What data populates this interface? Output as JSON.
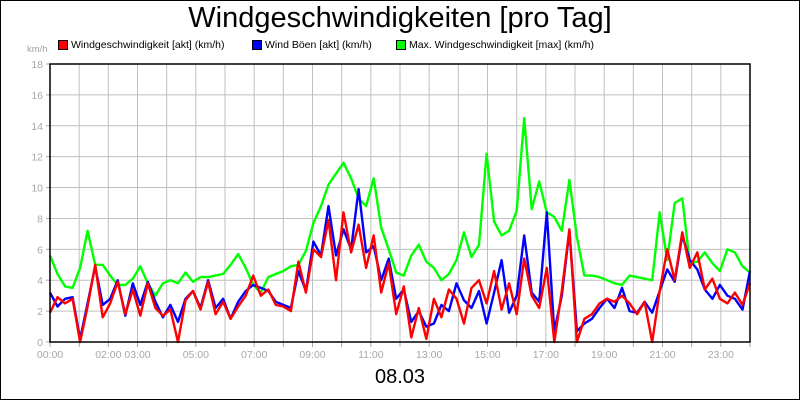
{
  "title": "Windgeschwindigkeiten [pro Tag]",
  "unit_label": "km/h",
  "date_label": "08.03",
  "legend": [
    {
      "label": "Windgeschwindigkeit [akt] (km/h)",
      "color": "#ff0000"
    },
    {
      "label": "Wind Böen [akt] (km/h)",
      "color": "#0000ff"
    },
    {
      "label": "Max. Windgeschwindigkeit [max] (km/h)",
      "color": "#00ff00"
    }
  ],
  "chart_data": {
    "type": "line",
    "title": "Windgeschwindigkeiten [pro Tag]",
    "xlabel": "08.03",
    "ylabel": "km/h",
    "ylim": [
      0,
      18
    ],
    "yticks": [
      0,
      2,
      4,
      6,
      8,
      10,
      12,
      14,
      16,
      18
    ],
    "xlim_hours": [
      0,
      24
    ],
    "xtick_labels": [
      {
        "h": 0,
        "label": "00:00"
      },
      {
        "h": 2,
        "label": "02:00"
      },
      {
        "h": 3,
        "label": "03:00"
      },
      {
        "h": 5,
        "label": "05:00"
      },
      {
        "h": 7,
        "label": "07:00"
      },
      {
        "h": 9,
        "label": "09:00"
      },
      {
        "h": 11,
        "label": "11:00"
      },
      {
        "h": 13,
        "label": "13:00"
      },
      {
        "h": 15,
        "label": "15:00"
      },
      {
        "h": 17,
        "label": "17:00"
      },
      {
        "h": 19,
        "label": "19:00"
      },
      {
        "h": 21,
        "label": "21:00"
      },
      {
        "h": 23,
        "label": "23:00"
      }
    ],
    "grid": true,
    "legend_position": "top",
    "x_step_minutes": 20,
    "series": [
      {
        "name": "Max. Windgeschwindigkeit [max] (km/h)",
        "color": "#00ff00",
        "values": [
          5.6,
          4.4,
          3.6,
          3.5,
          4.8,
          7.2,
          5.0,
          5.0,
          4.3,
          3.7,
          3.7,
          4.1,
          4.9,
          3.8,
          3.0,
          3.8,
          4.0,
          3.8,
          4.5,
          3.9,
          4.2,
          4.2,
          4.3,
          4.4,
          5.0,
          5.7,
          4.8,
          3.7,
          3.2,
          4.2,
          4.4,
          4.6,
          4.9,
          5.0,
          5.9,
          7.7,
          8.8,
          10.2,
          10.9,
          11.6,
          10.6,
          9.3,
          8.8,
          10.6,
          7.4,
          6.0,
          4.5,
          4.3,
          5.6,
          6.3,
          5.2,
          4.8,
          4.0,
          4.4,
          5.3,
          7.1,
          5.5,
          6.3,
          12.2,
          7.8,
          6.9,
          7.2,
          8.5,
          14.5,
          8.6,
          10.4,
          8.4,
          8.1,
          7.2,
          10.5,
          6.8,
          4.3,
          4.3,
          4.2,
          4.0,
          3.8,
          3.7,
          4.3,
          4.2,
          4.1,
          4.0,
          8.4,
          5.3,
          9.0,
          9.3,
          5.1,
          5.2,
          5.8,
          5.1,
          4.6,
          6.0,
          5.8,
          4.9,
          4.5
        ],
        "note": "values sampled every ~15 min across 00:00–24:00"
      },
      {
        "name": "Wind Böen [akt] (km/h)",
        "color": "#0000ff",
        "values": [
          3.2,
          2.3,
          2.8,
          2.9,
          0.2,
          2.5,
          4.9,
          2.4,
          2.8,
          4.0,
          1.7,
          3.8,
          2.4,
          3.9,
          2.6,
          1.6,
          2.4,
          1.3,
          2.8,
          3.3,
          2.2,
          4.0,
          2.2,
          2.8,
          1.5,
          2.6,
          3.3,
          3.7,
          3.5,
          3.3,
          2.6,
          2.4,
          2.2,
          4.6,
          3.3,
          6.5,
          5.6,
          8.8,
          5.6,
          7.3,
          6.0,
          9.9,
          5.8,
          6.2,
          4.0,
          5.4,
          2.8,
          3.4,
          1.3,
          2.0,
          1.0,
          1.2,
          2.4,
          2.0,
          3.8,
          2.7,
          2.2,
          3.3,
          1.2,
          3.2,
          5.3,
          1.9,
          3.0,
          6.9,
          3.2,
          2.6,
          8.4,
          0.7,
          3.0,
          7.2,
          0.7,
          1.2,
          1.5,
          2.2,
          2.8,
          2.2,
          3.5,
          2.0,
          1.9,
          2.6,
          1.9,
          3.3,
          4.7,
          3.9,
          6.9,
          5.3,
          4.7,
          3.4,
          2.8,
          3.7,
          3.0,
          2.8,
          2.1,
          4.6
        ]
      },
      {
        "name": "Windgeschwindigkeit [akt] (km/h)",
        "color": "#ff0000",
        "values": [
          1.9,
          2.9,
          2.5,
          2.8,
          0.0,
          2.3,
          5.0,
          1.6,
          2.5,
          3.9,
          1.8,
          3.4,
          1.7,
          3.8,
          2.2,
          1.7,
          2.1,
          0.0,
          2.7,
          3.3,
          2.1,
          3.9,
          1.8,
          2.6,
          1.5,
          2.3,
          3.0,
          4.3,
          3.0,
          3.4,
          2.4,
          2.3,
          2.0,
          5.2,
          3.2,
          6.0,
          5.5,
          7.9,
          4.0,
          8.4,
          5.8,
          7.6,
          4.8,
          6.9,
          3.2,
          5.1,
          1.8,
          3.6,
          0.3,
          2.2,
          0.2,
          2.8,
          1.6,
          3.4,
          2.8,
          1.2,
          3.5,
          4.0,
          2.5,
          4.6,
          2.1,
          3.8,
          1.8,
          5.4,
          3.0,
          2.2,
          4.8,
          0.0,
          3.3,
          7.3,
          0.0,
          1.5,
          1.8,
          2.5,
          2.8,
          2.6,
          3.0,
          2.5,
          1.8,
          2.6,
          0.0,
          3.3,
          6.0,
          4.0,
          7.1,
          4.8,
          5.8,
          3.4,
          4.1,
          2.8,
          2.5,
          3.2,
          2.4,
          3.8
        ]
      }
    ]
  }
}
